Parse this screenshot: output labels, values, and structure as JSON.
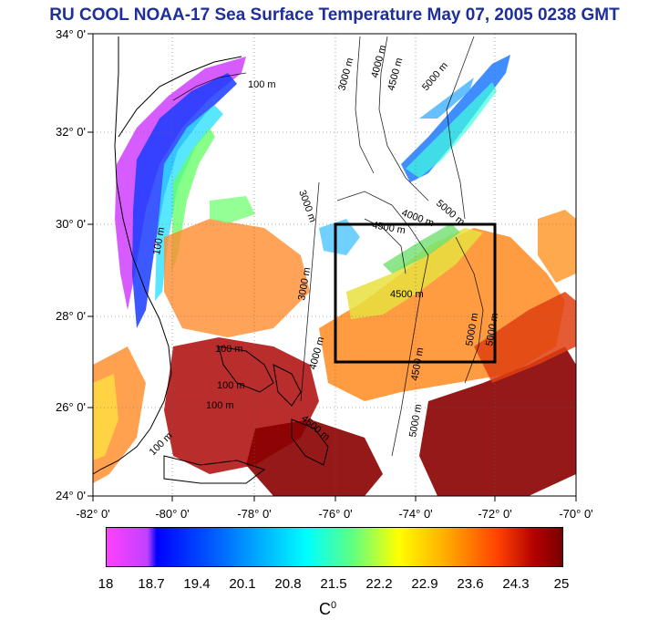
{
  "title": "RU COOL  NOAA-17 Sea Surface Temperature May 07, 2005 0238 GMT",
  "lat_labels": [
    "34° 0'",
    "32° 0'",
    "30° 0'",
    "28° 0'",
    "26° 0'",
    "24° 0'"
  ],
  "lon_labels": [
    "-82° 0'",
    "-80° 0'",
    "-78° 0'",
    "-76° 0'",
    "-74° 0'",
    "-72° 0'",
    "-70° 0'"
  ],
  "colorbar": {
    "ticks": [
      "18",
      "18.7",
      "19.4",
      "20.1",
      "20.8",
      "21.5",
      "22.2",
      "22.9",
      "23.6",
      "24.3",
      "25"
    ],
    "unit": "C",
    "unit_sup": "0"
  },
  "contour_labels": [
    "100 m",
    "3000 m",
    "4000 m",
    "4500 m",
    "5000 m",
    "3000 m",
    "4000 m",
    "5000 m",
    "4500 m",
    "4500 m",
    "100 m",
    "5000 m",
    "3000 m",
    "4500 m",
    "4000 m",
    "5000 m",
    "100 m",
    "100 m",
    "100 m",
    "100 m",
    "4500 m",
    "5000 m"
  ],
  "colors": {
    "title": "#1f2f9a",
    "coast": "#000000",
    "box": "#000000"
  }
}
